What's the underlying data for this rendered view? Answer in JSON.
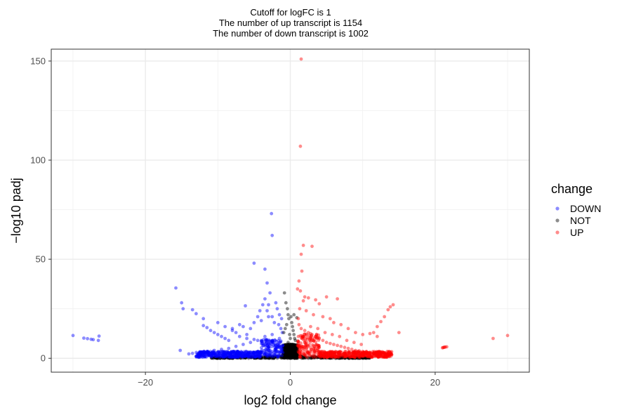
{
  "chart_data": {
    "type": "scatter",
    "title_lines": [
      "Cutoff for logFC is 1",
      "The number of up transcript is 1154",
      "The number of down transcript is 1002"
    ],
    "xlabel": "log2 fold change",
    "ylabel": "−log10 padj",
    "xlim": [
      -33,
      33
    ],
    "ylim": [
      -7,
      156
    ],
    "x_ticks": [
      -20,
      0,
      20
    ],
    "x_tick_labels": [
      "−20",
      "0",
      "20"
    ],
    "y_ticks": [
      0,
      50,
      100,
      150
    ],
    "y_tick_labels": [
      "0",
      "50",
      "100",
      "150"
    ],
    "grid": true,
    "legend": {
      "title": "change",
      "position": "right",
      "entries": [
        {
          "label": "DOWN",
          "color": "#0000ff"
        },
        {
          "label": "NOT",
          "color": "#000000"
        },
        {
          "label": "UP",
          "color": "#ff0000"
        }
      ]
    },
    "series": [
      {
        "name": "DOWN",
        "color": "#0000ff",
        "points": [
          [
            -30.0,
            11.5
          ],
          [
            -28.5,
            10.2
          ],
          [
            -28.0,
            9.9
          ],
          [
            -27.5,
            9.6
          ],
          [
            -27.2,
            9.4
          ],
          [
            -26.5,
            9.0
          ],
          [
            -26.4,
            11.2
          ],
          [
            -15.8,
            35.5
          ],
          [
            -15.0,
            28.0
          ],
          [
            -14.8,
            25.0
          ],
          [
            -15.2,
            4.0
          ],
          [
            -13.5,
            24.5
          ],
          [
            -13.0,
            22.5
          ],
          [
            -12.0,
            16.5
          ],
          [
            -11.5,
            15.5
          ],
          [
            -11.0,
            14.0
          ],
          [
            -10.5,
            13.0
          ],
          [
            -10.0,
            12.0
          ],
          [
            -9.5,
            11.0
          ],
          [
            -9.0,
            10.0
          ],
          [
            -8.5,
            9.0
          ],
          [
            -8.0,
            14.0
          ],
          [
            -7.5,
            13.0
          ],
          [
            -7.0,
            17.0
          ],
          [
            -6.5,
            16.0
          ],
          [
            -6.0,
            12.0
          ],
          [
            -5.5,
            15.0
          ],
          [
            -5.0,
            18.0
          ],
          [
            -4.5,
            21.0
          ],
          [
            -4.2,
            24.0
          ],
          [
            -3.8,
            27.0
          ],
          [
            -3.5,
            30.0
          ],
          [
            -3.2,
            24.0
          ],
          [
            -3.0,
            27.0
          ],
          [
            -2.8,
            33.0
          ],
          [
            -2.5,
            21.0
          ],
          [
            -2.0,
            28.0
          ],
          [
            -1.8,
            25.0
          ],
          [
            -1.5,
            22.0
          ],
          [
            -1.2,
            20.0
          ],
          [
            -4.0,
            19.0
          ],
          [
            -6.2,
            26.5
          ],
          [
            -5.0,
            48.0
          ],
          [
            -3.5,
            45.0
          ],
          [
            -3.2,
            38.0
          ],
          [
            -2.5,
            62.0
          ],
          [
            -2.6,
            73.0
          ],
          [
            -3.0,
            21.0
          ],
          [
            -2.2,
            18.0
          ],
          [
            -1.6,
            17.0
          ],
          [
            -1.3,
            15.0
          ],
          [
            -1.1,
            13.0
          ],
          [
            -1.5,
            10.0
          ],
          [
            -2.5,
            12.0
          ],
          [
            -3.5,
            11.0
          ],
          [
            -4.5,
            9.0
          ],
          [
            -5.5,
            8.0
          ],
          [
            -6.5,
            7.0
          ],
          [
            -7.5,
            6.0
          ],
          [
            -8.5,
            5.0
          ],
          [
            -9.5,
            4.5
          ],
          [
            -10.5,
            4.0
          ],
          [
            -11.5,
            3.5
          ],
          [
            -12.5,
            3.0
          ],
          [
            -13.5,
            2.5
          ],
          [
            -14.0,
            2.2
          ],
          [
            -12.0,
            20.0
          ],
          [
            -10.0,
            18.0
          ],
          [
            -9.0,
            16.0
          ],
          [
            -8.0,
            15.0
          ],
          [
            -7.0,
            11.0
          ],
          [
            -6.0,
            10.0
          ],
          [
            -5.0,
            9.5
          ],
          [
            -4.0,
            8.5
          ],
          [
            -3.0,
            7.5
          ],
          [
            -2.0,
            6.5
          ],
          [
            -1.5,
            5.5
          ],
          [
            -1.2,
            4.5
          ],
          [
            -1.1,
            3.5
          ]
        ]
      },
      {
        "name": "NOT",
        "color": "#000000",
        "points": [
          [
            -0.8,
            33.0
          ],
          [
            -0.6,
            28.0
          ],
          [
            -0.4,
            25.0
          ],
          [
            -0.3,
            22.0
          ],
          [
            -0.2,
            20.0
          ],
          [
            0.1,
            21.0
          ],
          [
            0.2,
            18.0
          ],
          [
            0.3,
            16.0
          ],
          [
            0.4,
            14.0
          ],
          [
            0.5,
            12.0
          ],
          [
            0.6,
            10.0
          ],
          [
            0.7,
            9.0
          ],
          [
            -0.5,
            17.0
          ],
          [
            -0.7,
            15.0
          ],
          [
            -0.9,
            13.0
          ],
          [
            -0.1,
            12.0
          ],
          [
            0.0,
            10.0
          ],
          [
            -0.3,
            8.0
          ],
          [
            0.3,
            7.0
          ],
          [
            -0.6,
            6.0
          ],
          [
            0.6,
            5.0
          ],
          [
            0.8,
            4.0
          ],
          [
            -0.8,
            4.0
          ],
          [
            0.5,
            22.0
          ],
          [
            0.9,
            20.5
          ],
          [
            -0.4,
            3.0
          ],
          [
            0.4,
            3.0
          ]
        ]
      },
      {
        "name": "UP",
        "color": "#ff0000",
        "points": [
          [
            1.5,
            151.0
          ],
          [
            1.4,
            107.0
          ],
          [
            1.8,
            57.0
          ],
          [
            1.5,
            52.5
          ],
          [
            3.0,
            56.5
          ],
          [
            1.6,
            44.0
          ],
          [
            1.2,
            39.0
          ],
          [
            1.0,
            35.0
          ],
          [
            1.4,
            34.0
          ],
          [
            2.0,
            31.0
          ],
          [
            2.5,
            30.5
          ],
          [
            1.8,
            29.0
          ],
          [
            3.5,
            29.5
          ],
          [
            4.0,
            27.5
          ],
          [
            5.0,
            31.0
          ],
          [
            6.5,
            30.0
          ],
          [
            1.3,
            25.0
          ],
          [
            2.2,
            24.0
          ],
          [
            3.2,
            22.0
          ],
          [
            4.5,
            21.0
          ],
          [
            5.5,
            20.0
          ],
          [
            6.0,
            18.0
          ],
          [
            7.0,
            17.0
          ],
          [
            8.0,
            15.0
          ],
          [
            9.0,
            13.0
          ],
          [
            10.0,
            12.0
          ],
          [
            11.0,
            12.5
          ],
          [
            11.5,
            13.0
          ],
          [
            12.0,
            16.0
          ],
          [
            12.5,
            18.5
          ],
          [
            13.0,
            21.0
          ],
          [
            13.5,
            24.5
          ],
          [
            13.8,
            26.0
          ],
          [
            14.2,
            27.0
          ],
          [
            15.0,
            13.0
          ],
          [
            12.0,
            11.0
          ],
          [
            1.1,
            20.0
          ],
          [
            1.2,
            17.0
          ],
          [
            1.5,
            15.0
          ],
          [
            2.0,
            14.0
          ],
          [
            2.5,
            13.0
          ],
          [
            3.0,
            12.0
          ],
          [
            3.5,
            11.0
          ],
          [
            4.0,
            10.0
          ],
          [
            4.5,
            9.0
          ],
          [
            5.0,
            8.0
          ],
          [
            5.5,
            7.5
          ],
          [
            6.0,
            7.0
          ],
          [
            6.5,
            6.5
          ],
          [
            7.0,
            6.0
          ],
          [
            7.5,
            5.5
          ],
          [
            8.0,
            5.0
          ],
          [
            8.5,
            4.5
          ],
          [
            9.0,
            4.0
          ],
          [
            9.5,
            3.8
          ],
          [
            10.0,
            3.5
          ],
          [
            10.5,
            3.2
          ],
          [
            11.0,
            3.0
          ],
          [
            11.5,
            2.8
          ],
          [
            12.0,
            2.6
          ],
          [
            12.5,
            2.4
          ],
          [
            13.0,
            2.2
          ],
          [
            13.5,
            2.0
          ],
          [
            14.0,
            1.8
          ],
          [
            2.8,
            16.0
          ],
          [
            3.8,
            15.0
          ],
          [
            4.8,
            13.0
          ],
          [
            5.8,
            12.0
          ],
          [
            6.8,
            11.0
          ],
          [
            7.8,
            9.0
          ],
          [
            8.8,
            8.0
          ],
          [
            9.8,
            7.0
          ],
          [
            21.0,
            5.3
          ],
          [
            21.2,
            5.5
          ],
          [
            21.4,
            5.7
          ],
          [
            21.6,
            5.8
          ],
          [
            21.1,
            5.4
          ],
          [
            21.3,
            5.6
          ],
          [
            28.0,
            10.0
          ],
          [
            30.0,
            11.5
          ]
        ]
      }
    ]
  }
}
